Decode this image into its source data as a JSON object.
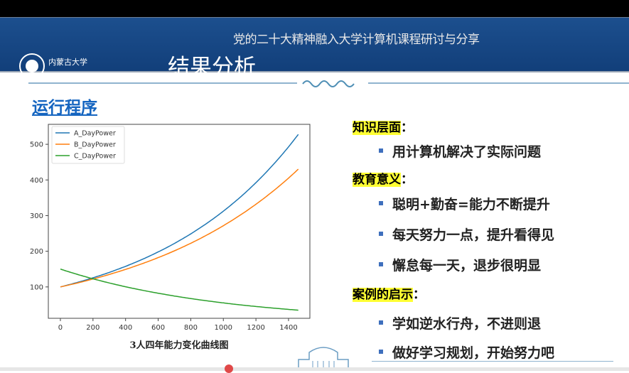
{
  "header": {
    "subtitle": "党的二十大精神融入大学计算机课程研讨与分享",
    "title": "结果分析",
    "logo_text": "内蒙古大学 INNER MONGOLIA UNIVERSITY"
  },
  "section_title": "运行程序",
  "chart_data": {
    "type": "line",
    "title": "",
    "xlabel": "3人四年能力变化曲线图",
    "ylabel": "",
    "xlim": [
      -74,
      1531
    ],
    "ylim": [
      12,
      556
    ],
    "xticks": [
      0,
      200,
      400,
      600,
      800,
      1000,
      1200,
      1400
    ],
    "yticks": [
      100,
      200,
      300,
      400,
      500
    ],
    "legend_placement": "top-left",
    "series": [
      {
        "name": "A_DayPower",
        "color": "#1f77b4",
        "start": 100,
        "daily_rate": 1.00114,
        "days": 1460,
        "end": 530
      },
      {
        "name": "B_DayPower",
        "color": "#ff7f0e",
        "start": 100,
        "daily_rate": 1.001,
        "days": 1460,
        "end": 431
      },
      {
        "name": "C_DayPower",
        "color": "#2ca02c",
        "start": 150,
        "daily_rate": 0.999,
        "days": 1460,
        "end": 35
      }
    ]
  },
  "points": [
    {
      "heading": "知识层面",
      "colon": "：",
      "bullets": [
        "用计算机解决了实际问题"
      ]
    },
    {
      "heading": "教育意义",
      "colon": "：",
      "bullets": [
        "聪明+勤奋=能力不断提升",
        "每天努力一点，提升看得见",
        "懈怠每一天，退步很明显"
      ]
    },
    {
      "heading": "案例的启示",
      "colon": "：",
      "bullets": [
        "学如逆水行舟，不进则退",
        "做好学习规划，开始努力吧"
      ]
    }
  ]
}
